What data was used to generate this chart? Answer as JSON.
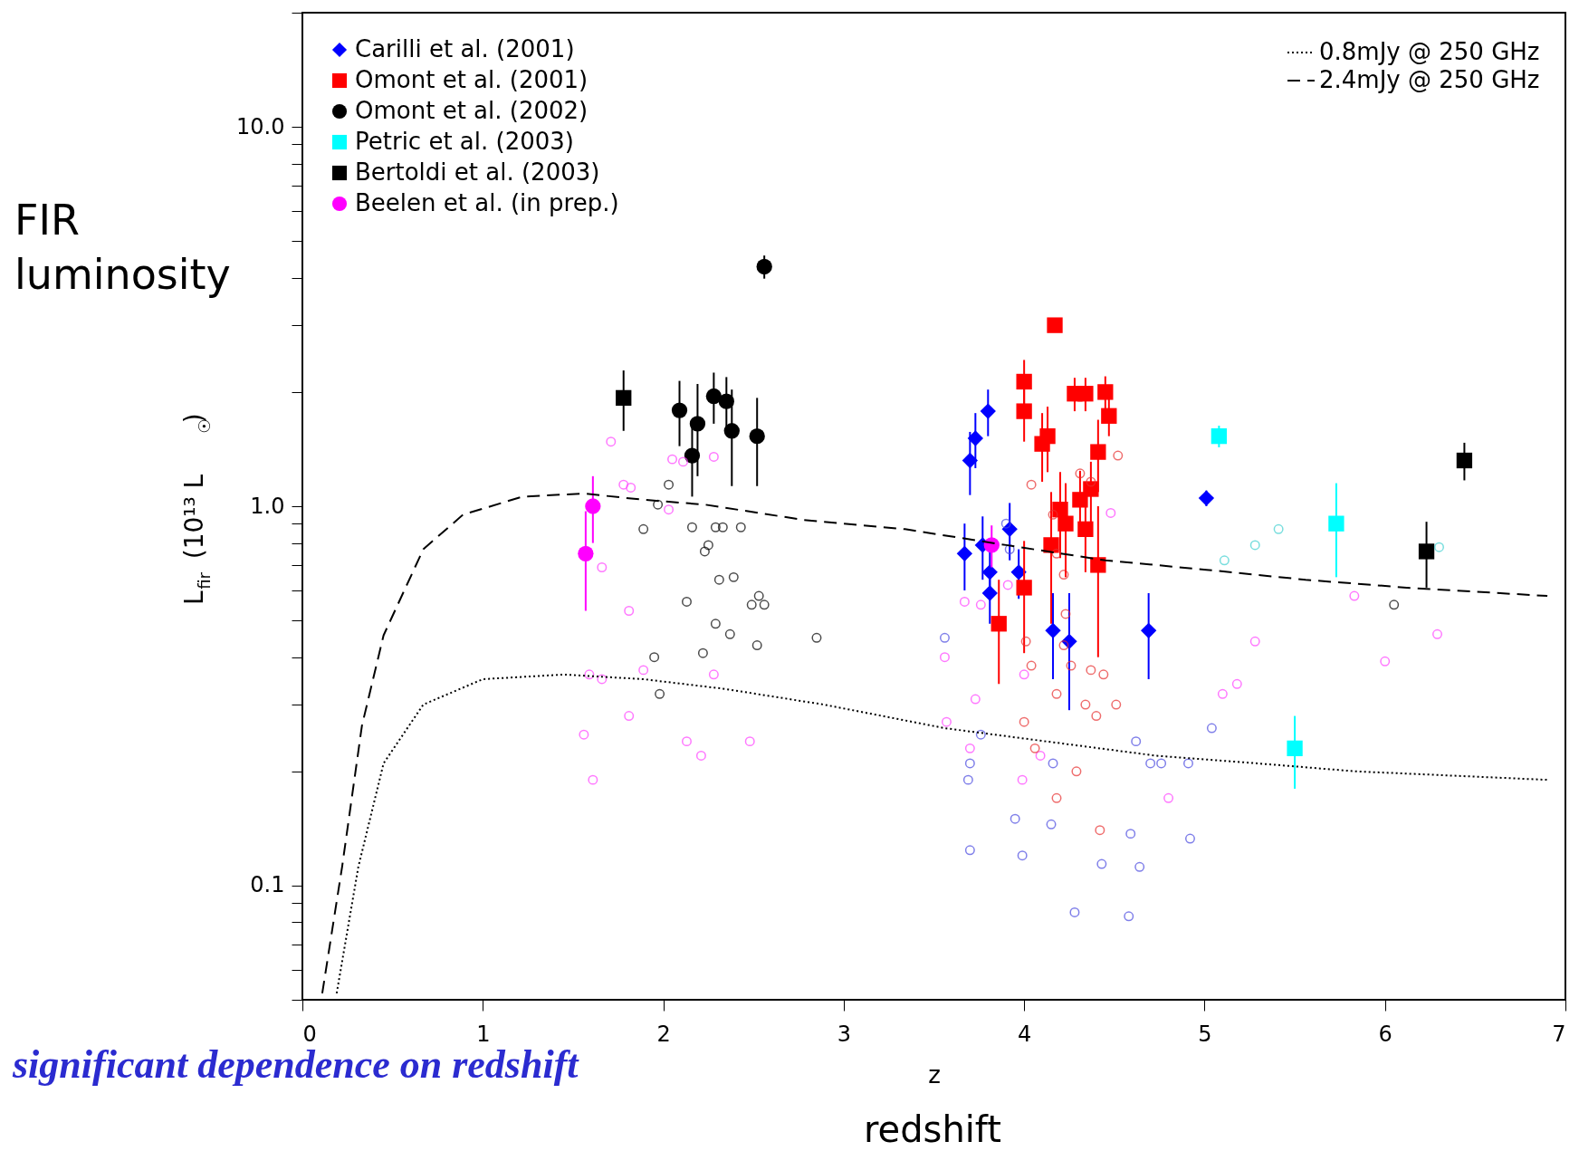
{
  "chart_data": {
    "type": "scatter",
    "xlabel": "z",
    "ylabel": "L$_{fir}$ (10¹³ L$_{☉}$)",
    "xlim": [
      0,
      7
    ],
    "ylim": [
      0.05,
      20
    ],
    "xticks": [
      0,
      1,
      2,
      3,
      4,
      5,
      6,
      7
    ],
    "yticks": [
      {
        "value": 0.05,
        "label": null
      },
      {
        "value": 0.06,
        "label": null
      },
      {
        "value": 0.07,
        "label": null
      },
      {
        "value": 0.08,
        "label": null
      },
      {
        "value": 0.09,
        "label": null
      },
      0.1,
      {
        "value": 0.2,
        "label": null
      },
      {
        "value": 0.3,
        "label": null
      },
      {
        "value": 0.4,
        "label": null
      },
      {
        "value": 0.5,
        "label": null
      },
      {
        "value": 0.6,
        "label": null
      },
      {
        "value": 0.7,
        "label": null
      },
      {
        "value": 0.8,
        "label": null
      },
      {
        "value": 0.9,
        "label": null
      },
      {
        "value": 1,
        "label": "1.0"
      },
      {
        "value": 2,
        "label": null
      },
      {
        "value": 3,
        "label": null
      },
      {
        "value": 4,
        "label": null
      },
      {
        "value": 5,
        "label": null
      },
      {
        "value": 6,
        "label": null
      },
      {
        "value": 7,
        "label": null
      },
      {
        "value": 8,
        "label": null
      },
      {
        "value": 9,
        "label": null
      },
      {
        "value": 10,
        "label": "10.0"
      },
      {
        "value": 20,
        "label": null
      }
    ],
    "log": "y",
    "grid": false,
    "legend": "top left",
    "annotations": [
      "FIR luminosity",
      "significant dependence on redshift",
      "redshift"
    ],
    "series": [
      {
        "name": "Carilli et al. (2001)",
        "color": "#0000ff",
        "marker": "diamond",
        "x": [
          3.7,
          3.73,
          3.8,
          3.67,
          3.77,
          3.81,
          3.81,
          3.92,
          3.97,
          4.16,
          4.25,
          4.69,
          5.01
        ],
        "values": [
          1.32,
          1.51,
          1.78,
          0.75,
          0.79,
          0.67,
          0.59,
          0.87,
          0.67,
          0.47,
          0.44,
          0.47,
          1.05
        ],
        "errors": [
          0.25,
          0.25,
          0.25,
          0.15,
          0.15,
          0.1,
          0.1,
          0.15,
          0.1,
          0.12,
          0.15,
          0.12,
          0.05
        ]
      },
      {
        "name": "Omont et al. (2001)",
        "color": "#ff0000",
        "marker": "square",
        "x": [
          4.0,
          4.0,
          4.13,
          4.1,
          4.28,
          4.34,
          4.45,
          4.47,
          4.41,
          4.17,
          4.2,
          4.23,
          4.15,
          4.31,
          4.37,
          4.34,
          4.41,
          4.0,
          3.86
        ],
        "values": [
          2.13,
          1.78,
          1.53,
          1.46,
          1.98,
          1.98,
          2.0,
          1.73,
          1.39,
          3.0,
          0.98,
          0.9,
          0.79,
          1.04,
          1.11,
          0.87,
          0.7,
          0.61,
          0.49
        ],
        "errors": [
          0.3,
          0.3,
          0.3,
          0.3,
          0.2,
          0.2,
          0.2,
          0.2,
          0.3,
          null,
          0.25,
          0.25,
          0.3,
          0.2,
          0.2,
          0.2,
          0.3,
          0.2,
          0.15
        ]
      },
      {
        "name": "Omont et al. (2002)",
        "color": "#000000",
        "marker": "circle",
        "x": [
          2.56,
          2.09,
          2.28,
          2.35,
          2.19,
          2.16,
          2.38,
          2.52
        ],
        "values": [
          4.28,
          1.79,
          1.95,
          1.89,
          1.65,
          1.36,
          1.58,
          1.53
        ],
        "errors": [
          0.3,
          0.35,
          0.3,
          0.3,
          0.45,
          0.3,
          0.45,
          0.4
        ]
      },
      {
        "name": "Petric et al. (2003)",
        "color": "#00ffff",
        "marker": "square",
        "x": [
          5.08,
          5.73,
          5.5
        ],
        "values": [
          1.53,
          0.9,
          0.23
        ],
        "errors": [
          0.1,
          0.25,
          0.05
        ]
      },
      {
        "name": "Bertoldi et al. (2003)",
        "color": "#000000",
        "marker": "square",
        "x": [
          1.78,
          6.23,
          6.44
        ],
        "values": [
          1.93,
          0.76,
          1.32
        ],
        "errors": [
          0.35,
          0.15,
          0.15
        ]
      },
      {
        "name": "Beelen et al. (in prep.)",
        "color": "#ff00ff",
        "marker": "circle",
        "x": [
          1.61,
          1.57,
          3.82
        ],
        "values": [
          1.0,
          0.75,
          0.79
        ],
        "errors": [
          0.2,
          0.22,
          0.1
        ]
      },
      {
        "color": "#000000",
        "marker": "circle",
        "x": [
          1.89,
          1.97,
          2.03,
          2.16,
          2.23,
          2.25,
          2.29,
          2.33,
          2.31,
          2.39,
          2.43,
          2.49,
          2.53,
          2.56,
          2.13,
          2.29,
          2.37,
          2.52,
          2.85,
          1.95,
          2.22,
          1.98,
          6.05
        ],
        "values": [
          0.87,
          1.01,
          1.14,
          0.88,
          0.76,
          0.79,
          0.88,
          0.88,
          0.64,
          0.65,
          0.88,
          0.55,
          0.58,
          0.55,
          0.56,
          0.49,
          0.46,
          0.43,
          0.45,
          0.4,
          0.41,
          0.32,
          0.55
        ]
      },
      {
        "color": "#ff40ff",
        "marker": "circle",
        "x": [
          1.71,
          1.78,
          1.82,
          1.66,
          1.81,
          1.59,
          1.66,
          1.89,
          1.81,
          1.56,
          1.61,
          2.03,
          2.05,
          2.11,
          2.28,
          2.28,
          2.13,
          2.21,
          2.48,
          3.56,
          3.57,
          3.67,
          3.73,
          3.76,
          3.91,
          4.0,
          3.99,
          4.09,
          4.48,
          4.8,
          5.1,
          5.18,
          5.28,
          5.83,
          6.0,
          6.29,
          3.7
        ],
        "values": [
          1.48,
          1.14,
          1.12,
          0.69,
          0.53,
          0.36,
          0.35,
          0.37,
          0.28,
          0.25,
          0.19,
          0.98,
          1.33,
          1.31,
          1.35,
          0.36,
          0.24,
          0.22,
          0.24,
          0.4,
          0.27,
          0.56,
          0.31,
          0.55,
          0.62,
          0.36,
          0.19,
          0.22,
          0.96,
          0.17,
          0.32,
          0.34,
          0.44,
          0.58,
          0.39,
          0.46,
          0.23
        ]
      },
      {
        "color": "#4a4ae0",
        "marker": "circle",
        "x": [
          3.56,
          3.7,
          3.69,
          3.76,
          3.7,
          3.95,
          3.99,
          4.15,
          4.16,
          4.28,
          4.43,
          4.58,
          4.59,
          4.64,
          4.92,
          4.62,
          4.7,
          4.76,
          4.91,
          5.04,
          3.9,
          3.92
        ],
        "values": [
          0.45,
          0.21,
          0.19,
          0.25,
          0.124,
          0.15,
          0.12,
          0.145,
          0.21,
          0.085,
          0.114,
          0.083,
          0.137,
          0.112,
          0.133,
          0.24,
          0.21,
          0.21,
          0.21,
          0.26,
          0.9,
          0.77
        ]
      },
      {
        "color": "#e83030",
        "marker": "circle",
        "x": [
          4.04,
          4.16,
          4.18,
          4.22,
          4.31,
          4.37,
          4.52,
          4.01,
          4.04,
          4.23,
          4.22,
          4.26,
          4.18,
          4.37,
          4.44,
          4.34,
          4.4,
          4.51,
          4.0,
          4.06,
          4.18,
          4.29,
          4.42
        ],
        "values": [
          1.14,
          0.95,
          0.75,
          0.66,
          1.22,
          1.16,
          1.36,
          0.44,
          0.38,
          0.52,
          0.43,
          0.38,
          0.32,
          0.37,
          0.36,
          0.3,
          0.28,
          0.3,
          0.27,
          0.23,
          0.17,
          0.2,
          0.14
        ]
      },
      {
        "color": "#40d0d0",
        "marker": "circle",
        "x": [
          5.11,
          5.28,
          5.41,
          6.3
        ],
        "values": [
          0.72,
          0.79,
          0.87,
          0.78
        ]
      },
      {
        "type": "line",
        "name": "0.8mJy @ 250 GHz",
        "color": "#000000",
        "line_style": "dotted",
        "x": [
          0.19,
          0.31,
          0.45,
          0.67,
          1.0,
          1.45,
          1.89,
          2.34,
          2.89,
          3.56,
          4.12,
          4.73,
          5.29,
          5.84,
          6.9
        ],
        "values": [
          0.052,
          0.112,
          0.21,
          0.3,
          0.35,
          0.36,
          0.35,
          0.33,
          0.3,
          0.26,
          0.24,
          0.22,
          0.21,
          0.2,
          0.19
        ]
      },
      {
        "type": "line",
        "name": "2.4mJy @ 250 GHz",
        "color": "#000000",
        "line_style": "dashed",
        "x": [
          0.11,
          0.22,
          0.33,
          0.45,
          0.67,
          0.89,
          1.22,
          1.56,
          1.89,
          2.23,
          2.78,
          3.34,
          3.9,
          4.45,
          5.01,
          5.56,
          6.12,
          6.9
        ],
        "values": [
          0.052,
          0.112,
          0.264,
          0.457,
          0.77,
          0.95,
          1.06,
          1.08,
          1.04,
          1.01,
          0.92,
          0.87,
          0.79,
          0.72,
          0.68,
          0.64,
          0.61,
          0.58
        ]
      }
    ]
  }
}
